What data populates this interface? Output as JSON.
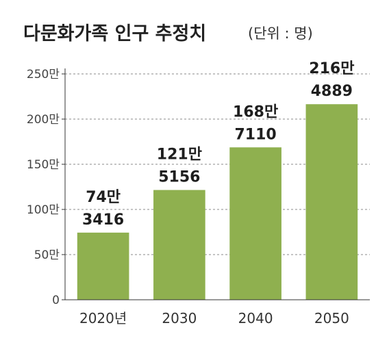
{
  "chart_data": {
    "type": "bar",
    "title": "다문화가족 인구 추정치",
    "unit_note": "(단위 : 명)",
    "categories": [
      "2020년",
      "2030",
      "2040",
      "2050"
    ],
    "values": [
      743416,
      1215156,
      1687110,
      2164889
    ],
    "value_labels": [
      [
        "74만",
        "3416"
      ],
      [
        "121만",
        "5156"
      ],
      [
        "168만",
        "7110"
      ],
      [
        "216만",
        "4889"
      ]
    ],
    "yticks": [
      0,
      500000,
      1000000,
      1500000,
      2000000,
      2500000
    ],
    "ytick_labels": [
      "0",
      "50만",
      "100만",
      "150만",
      "200만",
      "250만"
    ],
    "ylim": [
      0,
      2500000
    ],
    "xlabel": "",
    "ylabel": "",
    "grid": "dashed horizontal",
    "colors": {
      "bar": "#8fb04f",
      "grid": "#8a8a8a",
      "axis": "#333333",
      "text": "#222222"
    }
  }
}
